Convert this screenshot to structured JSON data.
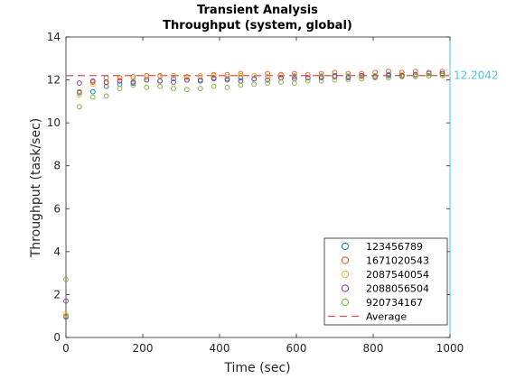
{
  "chart_data": {
    "type": "scatter",
    "title": "Transient Analysis",
    "subtitle": "Throughput (system, global)",
    "xlabel": "Time (sec)",
    "ylabel": "Throughput (task/sec)",
    "xlim": [
      0,
      1000
    ],
    "ylim": [
      0,
      14
    ],
    "xticks": [
      0,
      200,
      400,
      600,
      800,
      1000
    ],
    "yticks": [
      0,
      2,
      4,
      6,
      8,
      10,
      12,
      14
    ],
    "grid": false,
    "legend_position": "bottom-right",
    "average": {
      "name": "Average",
      "value": 12.2042,
      "label": "12.2042",
      "color": "#d9534f"
    },
    "marker_line": {
      "x": 1000,
      "color": "#4fc3d9"
    },
    "series": [
      {
        "name": "123456789",
        "color": "#0072bd",
        "x": [
          0,
          35,
          70,
          105,
          140,
          175,
          210,
          245,
          280,
          315,
          350,
          385,
          420,
          455,
          490,
          525,
          560,
          595,
          630,
          665,
          700,
          735,
          770,
          805,
          840,
          875,
          910,
          945,
          980
        ],
        "y": [
          0.95,
          11.4,
          11.45,
          11.7,
          11.8,
          11.9,
          12.0,
          11.95,
          12.05,
          12.0,
          12.0,
          12.1,
          12.05,
          12.1,
          12.05,
          12.15,
          12.1,
          12.15,
          12.1,
          12.15,
          12.2,
          12.15,
          12.2,
          12.2,
          12.25,
          12.2,
          12.25,
          12.3,
          12.3
        ]
      },
      {
        "name": "1671020543",
        "color": "#d95319",
        "x": [
          0,
          35,
          70,
          105,
          140,
          175,
          210,
          245,
          280,
          315,
          350,
          385,
          420,
          455,
          490,
          525,
          560,
          595,
          630,
          665,
          700,
          735,
          770,
          805,
          840,
          875,
          910,
          945,
          980
        ],
        "y": [
          1.0,
          11.45,
          11.9,
          12.1,
          12.1,
          12.15,
          12.2,
          12.2,
          12.2,
          12.15,
          12.2,
          12.25,
          12.25,
          12.3,
          12.2,
          12.3,
          12.25,
          12.3,
          12.25,
          12.3,
          12.35,
          12.3,
          12.3,
          12.35,
          12.4,
          12.35,
          12.4,
          12.35,
          12.4
        ]
      },
      {
        "name": "2087540054",
        "color": "#edb120",
        "x": [
          0,
          35,
          70,
          105,
          140,
          175,
          210,
          245,
          280,
          315,
          350,
          385,
          420,
          455,
          490,
          525,
          560,
          595,
          630,
          665,
          700,
          735,
          770,
          805,
          840,
          875,
          910,
          945,
          980
        ],
        "y": [
          1.1,
          11.3,
          11.8,
          11.85,
          12.0,
          12.05,
          12.1,
          12.15,
          12.2,
          12.1,
          12.2,
          12.2,
          12.15,
          12.2,
          12.2,
          12.15,
          12.2,
          12.2,
          12.1,
          12.2,
          12.15,
          12.2,
          12.15,
          12.2,
          12.2,
          12.25,
          12.2,
          12.2,
          12.25
        ]
      },
      {
        "name": "2088056504",
        "color": "#7e2f8e",
        "x": [
          0,
          35,
          70,
          105,
          140,
          175,
          210,
          245,
          280,
          315,
          350,
          385,
          420,
          455,
          490,
          525,
          560,
          595,
          630,
          665,
          700,
          735,
          770,
          805,
          840,
          875,
          910,
          945,
          980
        ],
        "y": [
          1.7,
          11.85,
          11.95,
          11.9,
          11.95,
          11.85,
          12.0,
          11.95,
          11.9,
          12.0,
          11.95,
          12.05,
          12.0,
          11.95,
          12.05,
          12.0,
          12.1,
          12.05,
          12.1,
          12.1,
          12.15,
          12.1,
          12.2,
          12.15,
          12.2,
          12.2,
          12.25,
          12.2,
          12.3
        ]
      },
      {
        "name": "920734167",
        "color": "#77ac30",
        "x": [
          0,
          35,
          70,
          105,
          140,
          175,
          210,
          245,
          280,
          315,
          350,
          385,
          420,
          455,
          490,
          525,
          560,
          595,
          630,
          665,
          700,
          735,
          770,
          805,
          840,
          875,
          910,
          945,
          980
        ],
        "y": [
          2.7,
          10.75,
          11.2,
          11.25,
          11.6,
          11.75,
          11.65,
          11.7,
          11.6,
          11.55,
          11.6,
          11.7,
          11.65,
          11.75,
          11.8,
          11.85,
          11.9,
          11.85,
          11.95,
          11.95,
          12.0,
          12.0,
          12.05,
          12.1,
          12.1,
          12.15,
          12.15,
          12.2,
          12.2
        ]
      }
    ]
  }
}
